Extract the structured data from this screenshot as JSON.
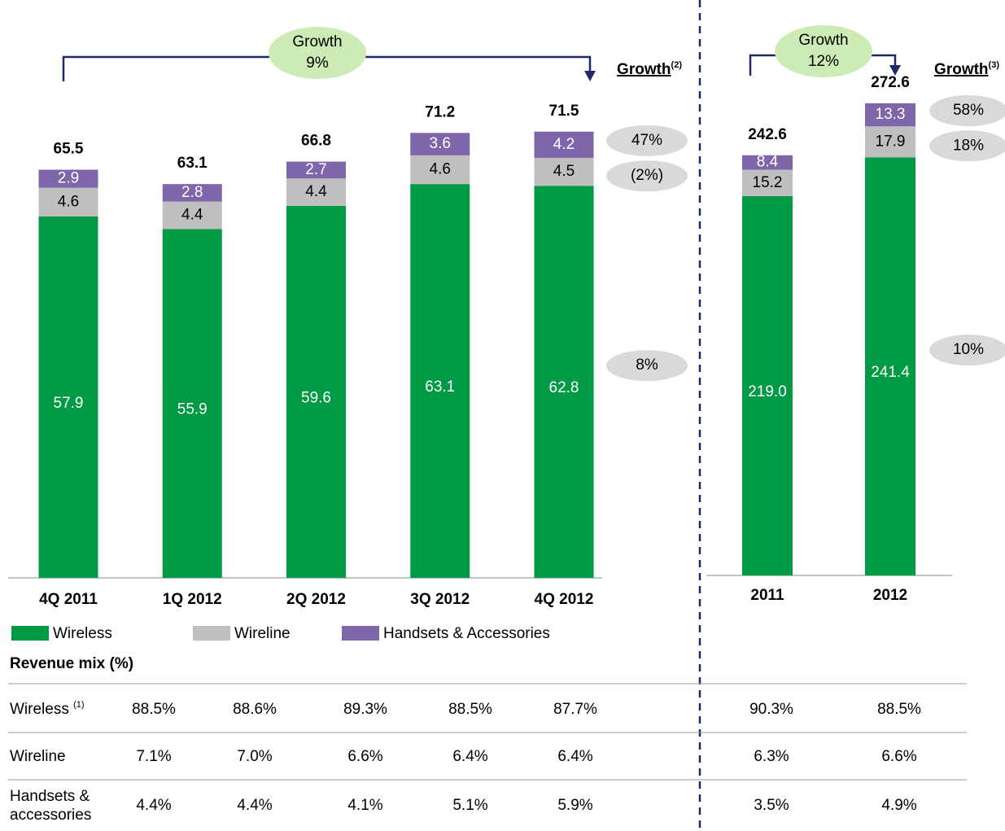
{
  "chart_data": [
    {
      "type": "stacked-bar",
      "categories": [
        "4Q 2011",
        "1Q 2012",
        "2Q 2012",
        "3Q 2012",
        "4Q 2012"
      ],
      "series": [
        {
          "name": "Wireless",
          "color": "#009a44",
          "values": [
            57.9,
            55.9,
            59.6,
            63.1,
            62.8
          ],
          "growth": "8%"
        },
        {
          "name": "Wireline",
          "color": "#bfbfbf",
          "values": [
            4.6,
            4.4,
            4.4,
            4.6,
            4.5
          ],
          "growth": "(2%)"
        },
        {
          "name": "Handsets & Accessories",
          "color": "#7f66aa",
          "values": [
            2.9,
            2.8,
            2.7,
            3.6,
            4.2
          ],
          "growth": "47%"
        }
      ],
      "totals": [
        65.5,
        63.1,
        66.8,
        71.2,
        71.5
      ],
      "growth_title": "Growth",
      "growth_note": "(2)",
      "annotation": {
        "label": "Growth",
        "value": "9%"
      }
    },
    {
      "type": "stacked-bar",
      "categories": [
        "2011",
        "2012"
      ],
      "series": [
        {
          "color": "#009a44",
          "values": [
            219.0,
            241.4
          ],
          "value_labels": [
            "219.0",
            "241.4"
          ],
          "growth": "10%"
        },
        {
          "color": "#bfbfbf",
          "values": [
            15.2,
            17.9
          ],
          "growth": "18%"
        },
        {
          "color": "#7f66aa",
          "values": [
            8.4,
            13.3
          ],
          "growth": "58%"
        }
      ],
      "totals": [
        242.6,
        272.6
      ],
      "growth_title": "Growth",
      "growth_note": "(3)",
      "annotation": {
        "label": "Growth",
        "value": "12%"
      }
    }
  ],
  "table": {
    "title": "Revenue mix (%)",
    "rows": [
      {
        "label": "Wireless",
        "note": "(1)",
        "values": [
          "88.5%",
          "88.6%",
          "89.3%",
          "88.5%",
          "87.7%",
          "90.3%",
          "88.5%"
        ]
      },
      {
        "label": "Wireline",
        "values": [
          "7.1%",
          "7.0%",
          "6.6%",
          "6.4%",
          "6.4%",
          "6.3%",
          "6.6%"
        ]
      },
      {
        "label": [
          "Handsets &",
          "accessories"
        ],
        "values": [
          "4.4%",
          "4.4%",
          "4.1%",
          "5.1%",
          "5.9%",
          "3.5%",
          "4.9%"
        ]
      }
    ]
  }
}
